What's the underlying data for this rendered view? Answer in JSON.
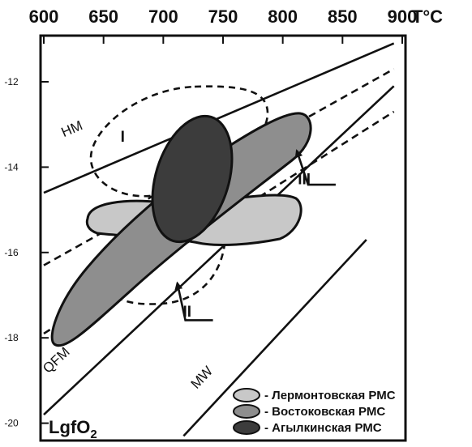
{
  "chart_data": {
    "type": "scatter",
    "x_unit": "T°C",
    "y_label": "LgfO2",
    "x_ticks": [
      600,
      650,
      700,
      750,
      800,
      850,
      900
    ],
    "y_ticks": [
      -12,
      -14,
      -16,
      -18,
      -20
    ],
    "x_range": [
      600,
      900
    ],
    "y_range": [
      -20.3,
      -11
    ],
    "buffers": [
      {
        "name": "HM",
        "x": [
          600,
          893
        ],
        "y": [
          -14.6,
          -11.1
        ]
      },
      {
        "name": "QFM",
        "x": [
          600,
          893
        ],
        "y": [
          -19.8,
          -12.1
        ]
      },
      {
        "name": "MW",
        "x": [
          717,
          870
        ],
        "y": [
          -20.3,
          -15.7
        ]
      }
    ],
    "dashed_lines": [
      {
        "x": [
          600,
          893
        ],
        "y": [
          -16.3,
          -11.7
        ]
      },
      {
        "x": [
          600,
          893
        ],
        "y": [
          -17.9,
          -12.7
        ]
      }
    ],
    "dashed_regions": [
      {
        "name": "I",
        "center": [
          718,
          -13.7
        ]
      },
      {
        "name": "II",
        "center": [
          675,
          -16.6
        ]
      }
    ],
    "roman_labels": [
      {
        "text": "I",
        "x": 666,
        "y": -13.4
      },
      {
        "text": "II",
        "x": 720,
        "y": -17.5
      },
      {
        "text": "III",
        "x": 818,
        "y": -14.4
      }
    ],
    "arrows": [
      {
        "label": "II",
        "to": [
          709,
          -16.6
        ]
      },
      {
        "label": "III",
        "to": [
          809,
          -13.5
        ]
      }
    ],
    "series": [
      {
        "name": "Лермонтовская РМС",
        "color": "#c8c8c8",
        "center": [
          722,
          -15.5
        ]
      },
      {
        "name": "Востоковская РМС",
        "color": "#8e8e8e",
        "center": [
          708,
          -15.6
        ]
      },
      {
        "name": "Агылкинская РМС",
        "color": "#3c3c3c",
        "center": [
          701,
          -14.2
        ]
      }
    ],
    "legend_position": "bottom-right",
    "grid": false
  }
}
